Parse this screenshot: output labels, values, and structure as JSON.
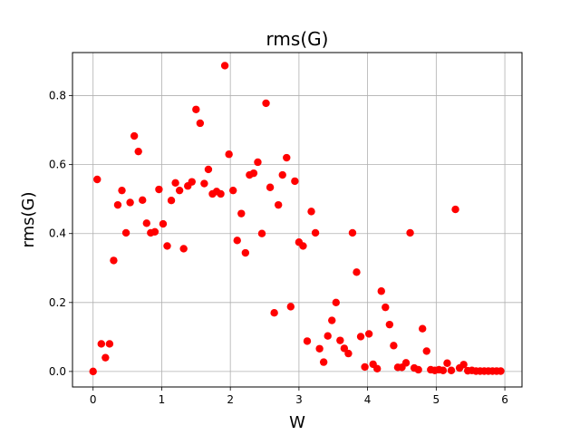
{
  "chart_data": {
    "type": "scatter",
    "title": "rms(G)",
    "xlabel": "W",
    "ylabel": "rms(G)",
    "xlim": [
      -0.3,
      6.25
    ],
    "ylim": [
      -0.045,
      0.925
    ],
    "xticks": [
      0,
      1,
      2,
      3,
      4,
      5,
      6
    ],
    "yticks": [
      0.0,
      0.2,
      0.4,
      0.6,
      0.8
    ],
    "xtick_labels": [
      "0",
      "1",
      "2",
      "3",
      "4",
      "5",
      "6"
    ],
    "ytick_labels": [
      "0.0",
      "0.2",
      "0.4",
      "0.6",
      "0.8"
    ],
    "grid": true,
    "marker_color": "#ff0000",
    "series": [
      {
        "points": [
          [
            0.0,
            0.0
          ],
          [
            0.06,
            0.557
          ],
          [
            0.12,
            0.08
          ],
          [
            0.18,
            0.04
          ],
          [
            0.24,
            0.08
          ],
          [
            0.3,
            0.322
          ],
          [
            0.36,
            0.483
          ],
          [
            0.42,
            0.525
          ],
          [
            0.48,
            0.402
          ],
          [
            0.54,
            0.49
          ],
          [
            0.6,
            0.683
          ],
          [
            0.66,
            0.638
          ],
          [
            0.72,
            0.497
          ],
          [
            0.78,
            0.43
          ],
          [
            0.84,
            0.402
          ],
          [
            0.9,
            0.405
          ],
          [
            0.96,
            0.528
          ],
          [
            1.02,
            0.428
          ],
          [
            1.08,
            0.364
          ],
          [
            1.14,
            0.496
          ],
          [
            1.2,
            0.547
          ],
          [
            1.26,
            0.525
          ],
          [
            1.32,
            0.356
          ],
          [
            1.38,
            0.538
          ],
          [
            1.44,
            0.55
          ],
          [
            1.5,
            0.76
          ],
          [
            1.56,
            0.72
          ],
          [
            1.62,
            0.545
          ],
          [
            1.68,
            0.586
          ],
          [
            1.74,
            0.515
          ],
          [
            1.8,
            0.522
          ],
          [
            1.86,
            0.515
          ],
          [
            1.92,
            0.887
          ],
          [
            1.98,
            0.63
          ],
          [
            2.04,
            0.525
          ],
          [
            2.1,
            0.38
          ],
          [
            2.16,
            0.458
          ],
          [
            2.22,
            0.344
          ],
          [
            2.28,
            0.57
          ],
          [
            2.34,
            0.575
          ],
          [
            2.4,
            0.607
          ],
          [
            2.46,
            0.4
          ],
          [
            2.52,
            0.778
          ],
          [
            2.58,
            0.534
          ],
          [
            2.64,
            0.17
          ],
          [
            2.7,
            0.483
          ],
          [
            2.76,
            0.57
          ],
          [
            2.82,
            0.62
          ],
          [
            2.88,
            0.188
          ],
          [
            2.94,
            0.552
          ],
          [
            3.0,
            0.375
          ],
          [
            3.06,
            0.364
          ],
          [
            3.12,
            0.088
          ],
          [
            3.18,
            0.464
          ],
          [
            3.24,
            0.402
          ],
          [
            3.3,
            0.066
          ],
          [
            3.36,
            0.027
          ],
          [
            3.42,
            0.103
          ],
          [
            3.48,
            0.148
          ],
          [
            3.54,
            0.2
          ],
          [
            3.6,
            0.09
          ],
          [
            3.66,
            0.067
          ],
          [
            3.72,
            0.052
          ],
          [
            3.78,
            0.402
          ],
          [
            3.84,
            0.288
          ],
          [
            3.9,
            0.101
          ],
          [
            3.96,
            0.013
          ],
          [
            4.02,
            0.109
          ],
          [
            4.08,
            0.021
          ],
          [
            4.14,
            0.008
          ],
          [
            4.2,
            0.233
          ],
          [
            4.26,
            0.186
          ],
          [
            4.32,
            0.136
          ],
          [
            4.38,
            0.075
          ],
          [
            4.44,
            0.012
          ],
          [
            4.5,
            0.012
          ],
          [
            4.56,
            0.025
          ],
          [
            4.62,
            0.402
          ],
          [
            4.68,
            0.01
          ],
          [
            4.74,
            0.005
          ],
          [
            4.8,
            0.124
          ],
          [
            4.86,
            0.059
          ],
          [
            4.92,
            0.005
          ],
          [
            4.98,
            0.003
          ],
          [
            5.04,
            0.005
          ],
          [
            5.1,
            0.003
          ],
          [
            5.16,
            0.024
          ],
          [
            5.22,
            0.003
          ],
          [
            5.28,
            0.47
          ],
          [
            5.34,
            0.01
          ],
          [
            5.4,
            0.02
          ],
          [
            5.46,
            0.002
          ],
          [
            5.52,
            0.003
          ],
          [
            5.58,
            0.001
          ],
          [
            5.64,
            0.001
          ],
          [
            5.7,
            0.001
          ],
          [
            5.76,
            0.001
          ],
          [
            5.82,
            0.001
          ],
          [
            5.88,
            0.001
          ],
          [
            5.94,
            0.001
          ]
        ]
      }
    ]
  }
}
